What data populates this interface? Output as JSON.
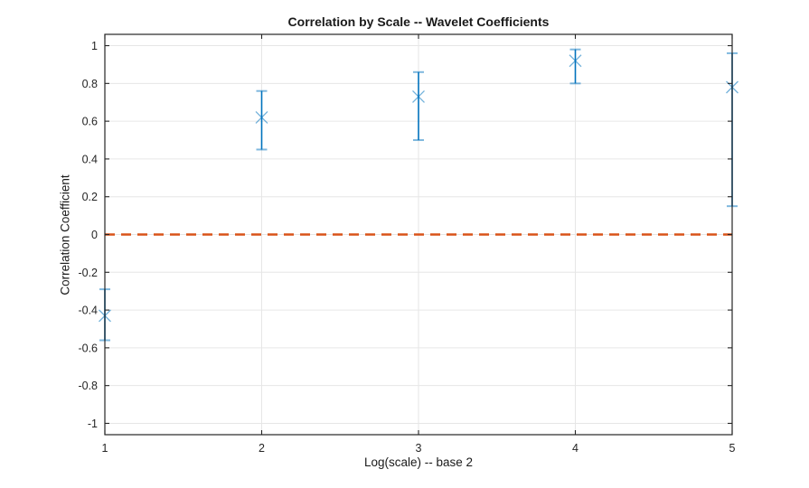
{
  "window": {
    "background": "#FFFFFF"
  },
  "chart_data": {
    "type": "errorbar",
    "title": "Correlation by Scale -- Wavelet Coefficients",
    "xlabel": "Log(scale) -- base 2",
    "ylabel": "Correlation Coefficient",
    "x": [
      1,
      2,
      3,
      4,
      5
    ],
    "y": [
      -0.43,
      0.62,
      0.73,
      0.92,
      0.78
    ],
    "y_lower": [
      -0.56,
      0.45,
      0.5,
      0.8,
      0.15
    ],
    "y_upper": [
      -0.29,
      0.76,
      0.86,
      0.98,
      0.96
    ],
    "xlim": [
      1,
      5
    ],
    "ylim": [
      -1.06,
      1.06
    ],
    "xticks": [
      1,
      2,
      3,
      4,
      5
    ],
    "yticks": [
      -1,
      -0.8,
      -0.6,
      -0.4,
      -0.2,
      0,
      0.2,
      0.4,
      0.6,
      0.8,
      1
    ],
    "grid": true,
    "box": true,
    "legend": "none",
    "marker": "x",
    "zero_line": {
      "y": 0,
      "line_style": "dashed"
    },
    "colors": {
      "series": "#0072BD",
      "zero_line": "#D95319",
      "axis": "#252525",
      "grid": "#E6E6E6",
      "background": "#FFFFFF"
    }
  }
}
